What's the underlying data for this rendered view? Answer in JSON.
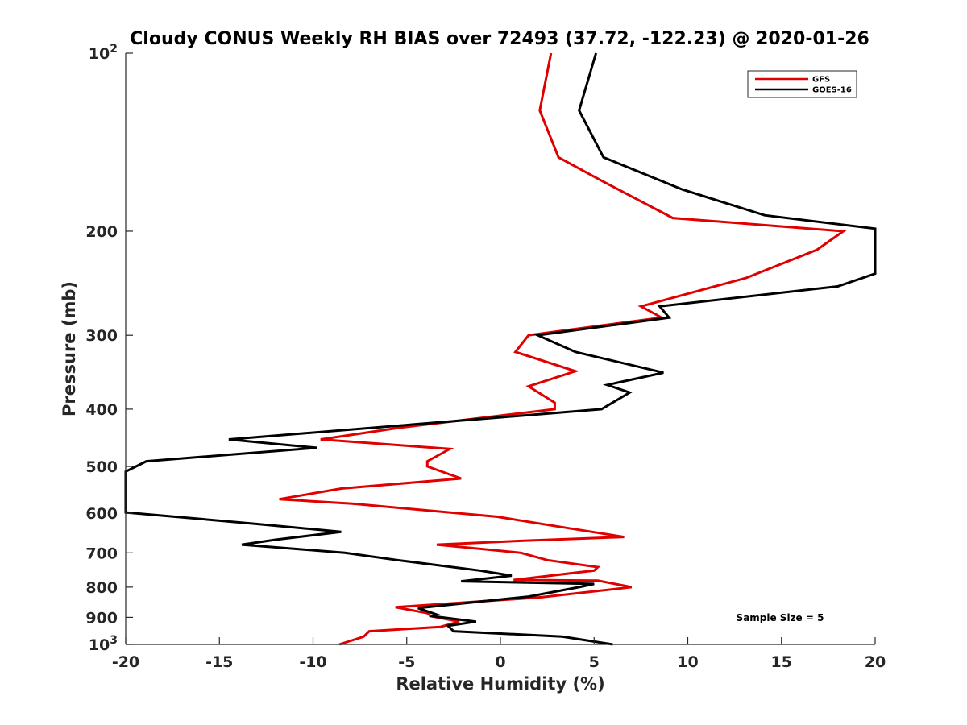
{
  "chart_data": {
    "type": "line",
    "title": "Cloudy CONUS Weekly RH BIAS over 72493 (37.72, -122.23) @ 2020-01-26",
    "xlabel": "Relative Humidity (%)",
    "ylabel": "Pressure (mb)",
    "xlim": [
      -20,
      20
    ],
    "ylim": [
      100,
      1000
    ],
    "y_scale": "log",
    "y_reversed": true,
    "grid": false,
    "legend_position": "top-right",
    "x_ticks": [
      {
        "value": -20,
        "label": "-20"
      },
      {
        "value": -15,
        "label": "-15"
      },
      {
        "value": -10,
        "label": "-10"
      },
      {
        "value": -5,
        "label": "-5"
      },
      {
        "value": 0,
        "label": "0"
      },
      {
        "value": 5,
        "label": "5"
      },
      {
        "value": 10,
        "label": "10"
      },
      {
        "value": 15,
        "label": "15"
      },
      {
        "value": 20,
        "label": "20"
      }
    ],
    "y_ticks": [
      {
        "value": 100,
        "base": "10",
        "exp": "2"
      },
      {
        "value": 200,
        "base": "200",
        "exp": ""
      },
      {
        "value": 300,
        "base": "300",
        "exp": ""
      },
      {
        "value": 400,
        "base": "400",
        "exp": ""
      },
      {
        "value": 500,
        "base": "500",
        "exp": ""
      },
      {
        "value": 600,
        "base": "600",
        "exp": ""
      },
      {
        "value": 700,
        "base": "700",
        "exp": ""
      },
      {
        "value": 800,
        "base": "800",
        "exp": ""
      },
      {
        "value": 900,
        "base": "900",
        "exp": ""
      },
      {
        "value": 1000,
        "base": "10",
        "exp": "3"
      }
    ],
    "annotation": "Sample Size = 5",
    "series": [
      {
        "name": "GFS",
        "color": "#e00000",
        "points": [
          [
            2.7,
            100
          ],
          [
            2.1,
            125
          ],
          [
            3.1,
            150
          ],
          [
            5.5,
            165
          ],
          [
            9.2,
            190
          ],
          [
            18.3,
            200
          ],
          [
            16.9,
            215
          ],
          [
            13.1,
            240
          ],
          [
            7.5,
            268
          ],
          [
            8.6,
            280
          ],
          [
            1.5,
            300
          ],
          [
            0.8,
            320
          ],
          [
            4,
            345
          ],
          [
            1.5,
            366
          ],
          [
            2.9,
            390
          ],
          [
            2.9,
            400
          ],
          [
            -5.4,
            430
          ],
          [
            -9.6,
            450
          ],
          [
            -2.7,
            467
          ],
          [
            -3.9,
            490
          ],
          [
            -3.9,
            500
          ],
          [
            -2.1,
            524
          ],
          [
            -8.5,
            545
          ],
          [
            -11.8,
            568
          ],
          [
            -7.9,
            578
          ],
          [
            -0.2,
            608
          ],
          [
            3.5,
            635
          ],
          [
            6.6,
            658
          ],
          [
            1.1,
            668
          ],
          [
            -3.4,
            678
          ],
          [
            1.1,
            700
          ],
          [
            2.5,
            720
          ],
          [
            5.2,
            740
          ],
          [
            5,
            750
          ],
          [
            0.7,
            778
          ],
          [
            5.2,
            780
          ],
          [
            7,
            800
          ],
          [
            2.2,
            832
          ],
          [
            -5.6,
            865
          ],
          [
            -3.9,
            885
          ],
          [
            -3.7,
            896
          ],
          [
            -2.2,
            915
          ],
          [
            -3.2,
            934
          ],
          [
            -7,
            950
          ],
          [
            -7.3,
            970
          ],
          [
            -8.6,
            1000
          ]
        ]
      },
      {
        "name": "GOES-16",
        "color": "#000000",
        "points": [
          [
            5.1,
            100
          ],
          [
            4.2,
            125
          ],
          [
            5.5,
            150
          ],
          [
            9.7,
            170
          ],
          [
            14.1,
            188
          ],
          [
            20,
            198
          ],
          [
            20,
            236
          ],
          [
            18,
            248
          ],
          [
            8.5,
            268
          ],
          [
            9,
            280
          ],
          [
            2,
            300
          ],
          [
            4,
            320
          ],
          [
            8.7,
            347
          ],
          [
            5.7,
            364
          ],
          [
            6.9,
            375
          ],
          [
            5.4,
            400
          ],
          [
            -14.5,
            450
          ],
          [
            -9.8,
            465
          ],
          [
            -18.9,
            490
          ],
          [
            -20,
            510
          ],
          [
            -20,
            598
          ],
          [
            -13.1,
            625
          ],
          [
            -8.5,
            645
          ],
          [
            -12,
            665
          ],
          [
            -13.8,
            678
          ],
          [
            -8.3,
            700
          ],
          [
            -5.5,
            720
          ],
          [
            -1.1,
            750
          ],
          [
            0.6,
            765
          ],
          [
            -2.1,
            782
          ],
          [
            5,
            790
          ],
          [
            4.2,
            800
          ],
          [
            1.5,
            830
          ],
          [
            -4.4,
            868
          ],
          [
            -3.4,
            890
          ],
          [
            -3.6,
            896
          ],
          [
            -1.3,
            915
          ],
          [
            -2.8,
            930
          ],
          [
            -2.5,
            950
          ],
          [
            3.3,
            970
          ],
          [
            6,
            1000
          ]
        ]
      }
    ]
  }
}
